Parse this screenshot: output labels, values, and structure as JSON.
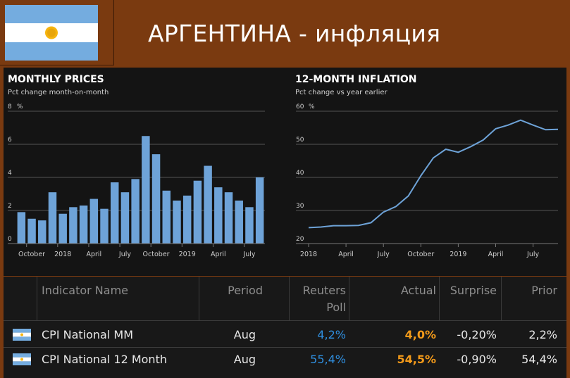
{
  "header": {
    "title": "АРГЕНТИНА - инфляция"
  },
  "colors": {
    "background": "#7a3a10",
    "panel": "#141414",
    "bar": "#6ea3d8",
    "line": "#6ea3d8",
    "flag_blue": "#74acdf",
    "sun": "#f6b40e",
    "reuters_blue": "#2f8fe0",
    "actual_orange": "#f39a1a"
  },
  "chart_data": [
    {
      "type": "bar",
      "title": "MONTHLY PRICES",
      "subtitle": "Pct change month-on-month",
      "unit": "%",
      "ylim": [
        0,
        8
      ],
      "yticks": [
        "8",
        "6",
        "4",
        "2",
        "0"
      ],
      "xtick_labels": [
        "October",
        "2018",
        "April",
        "July",
        "October",
        "2019",
        "April",
        "July"
      ],
      "values": [
        1.9,
        1.5,
        1.4,
        3.1,
        1.8,
        2.2,
        2.3,
        2.7,
        2.1,
        3.7,
        3.1,
        3.9,
        6.5,
        5.4,
        3.2,
        2.6,
        2.9,
        3.8,
        4.7,
        3.4,
        3.1,
        2.6,
        2.2,
        4.0
      ],
      "grid": true
    },
    {
      "type": "line",
      "title": "12-MONTH INFLATION",
      "subtitle": "Pct change vs year earlier",
      "unit": "%",
      "ylim": [
        20,
        60
      ],
      "yticks": [
        "60",
        "50",
        "40",
        "30",
        "20"
      ],
      "xtick_labels": [
        "2018",
        "April",
        "July",
        "October",
        "2019",
        "April",
        "July"
      ],
      "values": [
        24.8,
        25.0,
        25.4,
        25.4,
        25.5,
        26.3,
        29.5,
        31.2,
        34.4,
        40.5,
        45.9,
        48.5,
        47.6,
        49.3,
        51.3,
        54.7,
        55.8,
        57.3,
        55.8,
        54.4,
        54.5
      ],
      "grid": true
    }
  ],
  "table": {
    "headers": {
      "indicator": "Indicator Name",
      "period": "Period",
      "reuters_1": "Reuters",
      "reuters_2": "Poll",
      "actual": "Actual",
      "surprise": "Surprise",
      "prior": "Prior"
    },
    "rows": [
      {
        "indicator": "CPI National MM",
        "period": "Aug",
        "reuters": "4,2%",
        "actual": "4,0%",
        "surprise": "-0,20%",
        "prior": "2,2%"
      },
      {
        "indicator": "CPI National 12 Month",
        "period": "Aug",
        "reuters": "55,4%",
        "actual": "54,5%",
        "surprise": "-0,90%",
        "prior": "54,4%"
      }
    ]
  }
}
